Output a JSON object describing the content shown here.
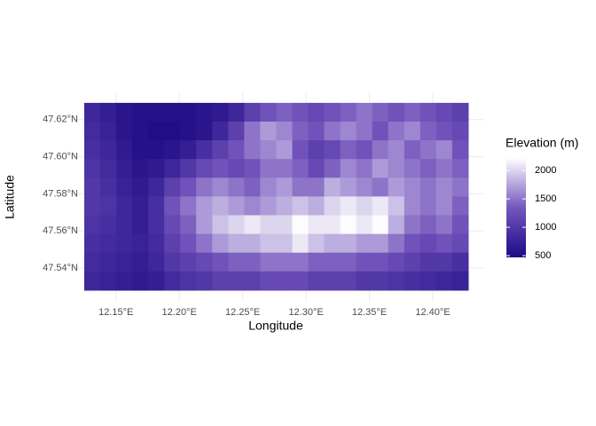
{
  "chart_data": {
    "type": "raster",
    "x_label": "Longitude",
    "y_label": "Latitude",
    "legend_title": "Elevation (m)",
    "grid": true,
    "colors": [
      "#1d0a85",
      "#7456bd",
      "#ffffff"
    ],
    "xlim": [
      12.125,
      12.428
    ],
    "ylim": [
      47.528,
      47.629
    ],
    "xticks": [
      {
        "value": 12.15,
        "label": "12.15°E"
      },
      {
        "value": 12.2,
        "label": "12.20°E"
      },
      {
        "value": 12.25,
        "label": "12.25°E"
      },
      {
        "value": 12.3,
        "label": "12.30°E"
      },
      {
        "value": 12.35,
        "label": "12.35°E"
      },
      {
        "value": 12.4,
        "label": "12.40°E"
      }
    ],
    "yticks": [
      {
        "value": 47.54,
        "label": "47.54°N"
      },
      {
        "value": 47.56,
        "label": "47.56°N"
      },
      {
        "value": 47.58,
        "label": "47.58°N"
      },
      {
        "value": 47.6,
        "label": "47.60°N"
      },
      {
        "value": 47.62,
        "label": "47.62°N"
      }
    ],
    "fill_lim": [
      470,
      2220
    ],
    "fill_ticks": [
      500,
      1000,
      1500,
      2000
    ],
    "x": [
      12.1313,
      12.1439,
      12.1565,
      12.1691,
      12.1818,
      12.1944,
      12.207,
      12.2196,
      12.2323,
      12.2449,
      12.2575,
      12.2701,
      12.2828,
      12.2954,
      12.308,
      12.3206,
      12.3333,
      12.3459,
      12.3585,
      12.3711,
      12.3838,
      12.3964,
      12.409,
      12.4216
    ],
    "y": [
      47.624,
      47.6139,
      47.6038,
      47.5937,
      47.5836,
      47.5735,
      47.5634,
      47.5533,
      47.5432,
      47.5331
    ],
    "values": [
      [
        800,
        700,
        600,
        550,
        550,
        550,
        550,
        600,
        650,
        800,
        1100,
        1300,
        1400,
        1300,
        1200,
        1300,
        1400,
        1500,
        1400,
        1300,
        1400,
        1300,
        1200,
        1100
      ],
      [
        850,
        750,
        600,
        550,
        500,
        500,
        550,
        600,
        800,
        1100,
        1500,
        1700,
        1600,
        1400,
        1300,
        1500,
        1600,
        1500,
        1300,
        1500,
        1600,
        1400,
        1300,
        1200
      ],
      [
        900,
        800,
        650,
        550,
        550,
        600,
        700,
        900,
        1100,
        1300,
        1500,
        1600,
        1700,
        1300,
        1100,
        1200,
        1400,
        1300,
        1500,
        1600,
        1400,
        1500,
        1600,
        1300
      ],
      [
        950,
        850,
        700,
        600,
        650,
        800,
        1000,
        1200,
        1300,
        1200,
        1300,
        1500,
        1500,
        1400,
        1200,
        1400,
        1600,
        1500,
        1700,
        1600,
        1500,
        1400,
        1500,
        1400
      ],
      [
        1000,
        900,
        750,
        650,
        800,
        1100,
        1300,
        1500,
        1600,
        1500,
        1400,
        1600,
        1700,
        1500,
        1500,
        1800,
        1700,
        1600,
        1500,
        1700,
        1600,
        1500,
        1600,
        1500
      ],
      [
        1000,
        950,
        800,
        700,
        900,
        1300,
        1500,
        1700,
        1800,
        1700,
        1600,
        1700,
        1800,
        1900,
        1800,
        2000,
        2100,
        2000,
        2100,
        1900,
        1600,
        1500,
        1600,
        1400
      ],
      [
        950,
        900,
        800,
        700,
        900,
        1200,
        1400,
        1700,
        1900,
        2000,
        2100,
        2000,
        2000,
        2200,
        2100,
        2100,
        2200,
        2100,
        2200,
        1800,
        1500,
        1400,
        1500,
        1300
      ],
      [
        900,
        850,
        800,
        750,
        850,
        1100,
        1300,
        1500,
        1700,
        1800,
        1800,
        1900,
        1900,
        2100,
        1900,
        1800,
        1800,
        1700,
        1700,
        1500,
        1300,
        1200,
        1300,
        1200
      ],
      [
        850,
        800,
        750,
        700,
        800,
        1000,
        1100,
        1200,
        1300,
        1400,
        1400,
        1500,
        1500,
        1500,
        1400,
        1400,
        1400,
        1300,
        1300,
        1200,
        1100,
        1000,
        1000,
        900
      ],
      [
        800,
        750,
        700,
        650,
        700,
        850,
        950,
        1000,
        1100,
        1100,
        1100,
        1200,
        1200,
        1200,
        1100,
        1100,
        1100,
        1000,
        1000,
        950,
        900,
        850,
        800,
        750
      ]
    ]
  }
}
